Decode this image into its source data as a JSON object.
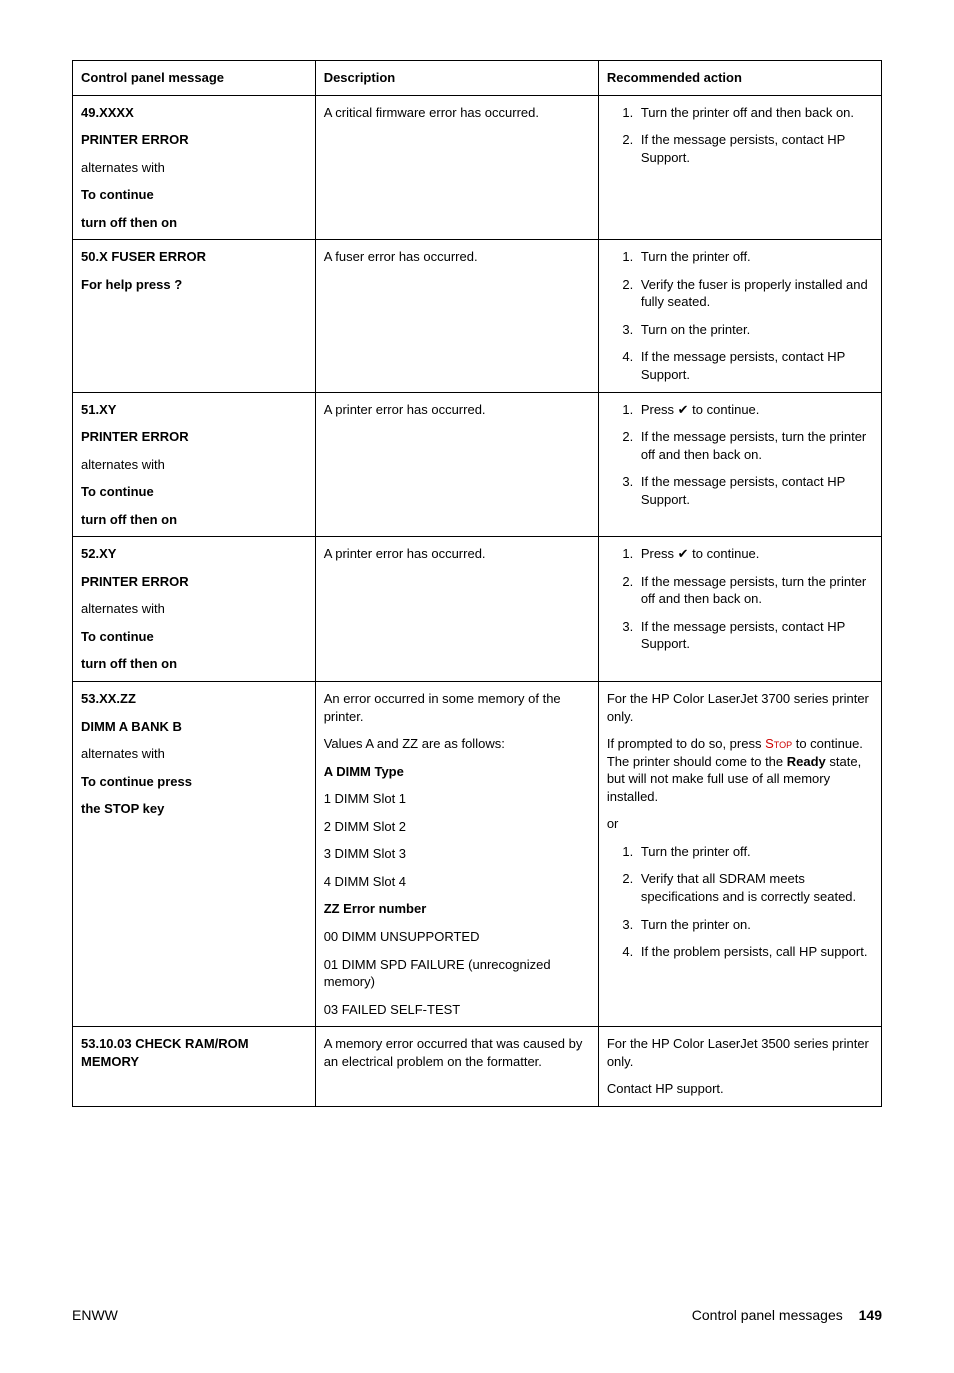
{
  "table": {
    "headers": [
      "Control panel message",
      "Description",
      "Recommended action"
    ],
    "rows": [
      {
        "message": [
          {
            "t": "49.XXXX",
            "b": true
          },
          {
            "t": "PRINTER ERROR",
            "b": true
          },
          {
            "t": "alternates with",
            "b": false
          },
          {
            "t": "To continue",
            "b": true
          },
          {
            "t": "turn off then on",
            "b": true
          }
        ],
        "description": [
          {
            "t": "A critical firmware error has occurred."
          }
        ],
        "action_type": "ol",
        "actions": [
          "Turn the printer off and then back on.",
          "If the message persists, contact HP Support."
        ]
      },
      {
        "message": [
          {
            "t": "50.X FUSER ERROR",
            "b": true
          },
          {
            "t": "For help press ?",
            "b": true
          }
        ],
        "description": [
          {
            "t": "A fuser error has occurred."
          }
        ],
        "action_type": "ol",
        "actions": [
          "Turn the printer off.",
          "Verify the fuser is properly installed and fully seated.",
          "Turn on the printer.",
          "If the message persists, contact HP Support."
        ]
      },
      {
        "message": [
          {
            "t": "51.XY",
            "b": true
          },
          {
            "t": "PRINTER ERROR",
            "b": true
          },
          {
            "t": "alternates with",
            "b": false
          },
          {
            "t": "To continue",
            "b": true
          },
          {
            "t": "turn off then on",
            "b": true
          }
        ],
        "description": [
          {
            "t": "A printer error has occurred."
          }
        ],
        "action_type": "ol_check",
        "actions": [
          "Press ✔ to continue.",
          "If the message persists, turn the printer off and then back on.",
          "If the message persists, contact HP Support."
        ]
      },
      {
        "message": [
          {
            "t": "52.XY",
            "b": true
          },
          {
            "t": "PRINTER ERROR",
            "b": true
          },
          {
            "t": "alternates with",
            "b": false
          },
          {
            "t": "To continue",
            "b": true
          },
          {
            "t": "turn off then on",
            "b": true
          }
        ],
        "description": [
          {
            "t": "A printer error has occurred."
          }
        ],
        "action_type": "ol_check",
        "actions": [
          "Press ✔ to continue.",
          "If the message persists, turn the printer off and then back on.",
          "If the message persists, contact HP Support."
        ]
      },
      {
        "message": [
          {
            "t": "53.XX.ZZ",
            "b": true
          },
          {
            "t": "DIMM A BANK B",
            "b": true
          },
          {
            "t": "alternates with",
            "b": false
          },
          {
            "t": "To continue press",
            "b": true
          },
          {
            "t": "the STOP key",
            "b": true
          }
        ],
        "description": [
          {
            "t": "An error occurred in some memory of the printer."
          },
          {
            "t": "Values A and ZZ are as follows:"
          },
          {
            "t": "A DIMM Type",
            "b": true
          },
          {
            "t": "1 DIMM Slot 1"
          },
          {
            "t": "2 DIMM Slot 2"
          },
          {
            "t": "3 DIMM Slot 3"
          },
          {
            "t": "4 DIMM Slot 4"
          },
          {
            "t": "ZZ Error number",
            "b": true
          },
          {
            "t": "00 DIMM UNSUPPORTED"
          },
          {
            "t": "01 DIMM SPD FAILURE (unrecognized memory)"
          },
          {
            "t": "03 FAILED SELF-TEST"
          }
        ],
        "action_type": "custom53",
        "action_custom": {
          "p1": "For the HP Color LaserJet 3700 series printer only.",
          "p2_pre": "If prompted to do so, press ",
          "p2_stop": "Stop",
          "p2_mid": " to continue. The printer should come to the ",
          "p2_ready": "Ready",
          "p2_post": " state, but will not make full use of all memory installed.",
          "or": "or",
          "list": [
            "Turn the printer off.",
            "Verify that all SDRAM meets specifications and is correctly seated.",
            "Turn the printer on.",
            "If the problem persists, call HP support."
          ]
        }
      },
      {
        "message": [
          {
            "t": "53.10.03 CHECK RAM/ROM MEMORY",
            "b": true
          }
        ],
        "description": [
          {
            "t": "A memory error occurred that was caused by an electrical problem on the formatter."
          }
        ],
        "action_type": "paras",
        "action_paras": [
          "For the HP Color LaserJet 3500 series printer only.",
          "Contact HP support."
        ]
      }
    ]
  },
  "footer": {
    "left": "ENWW",
    "right_text": "Control panel messages",
    "page": "149"
  },
  "colors": {
    "stop": "#cc0000",
    "border": "#000000",
    "text": "#000000",
    "bg": "#ffffff"
  }
}
